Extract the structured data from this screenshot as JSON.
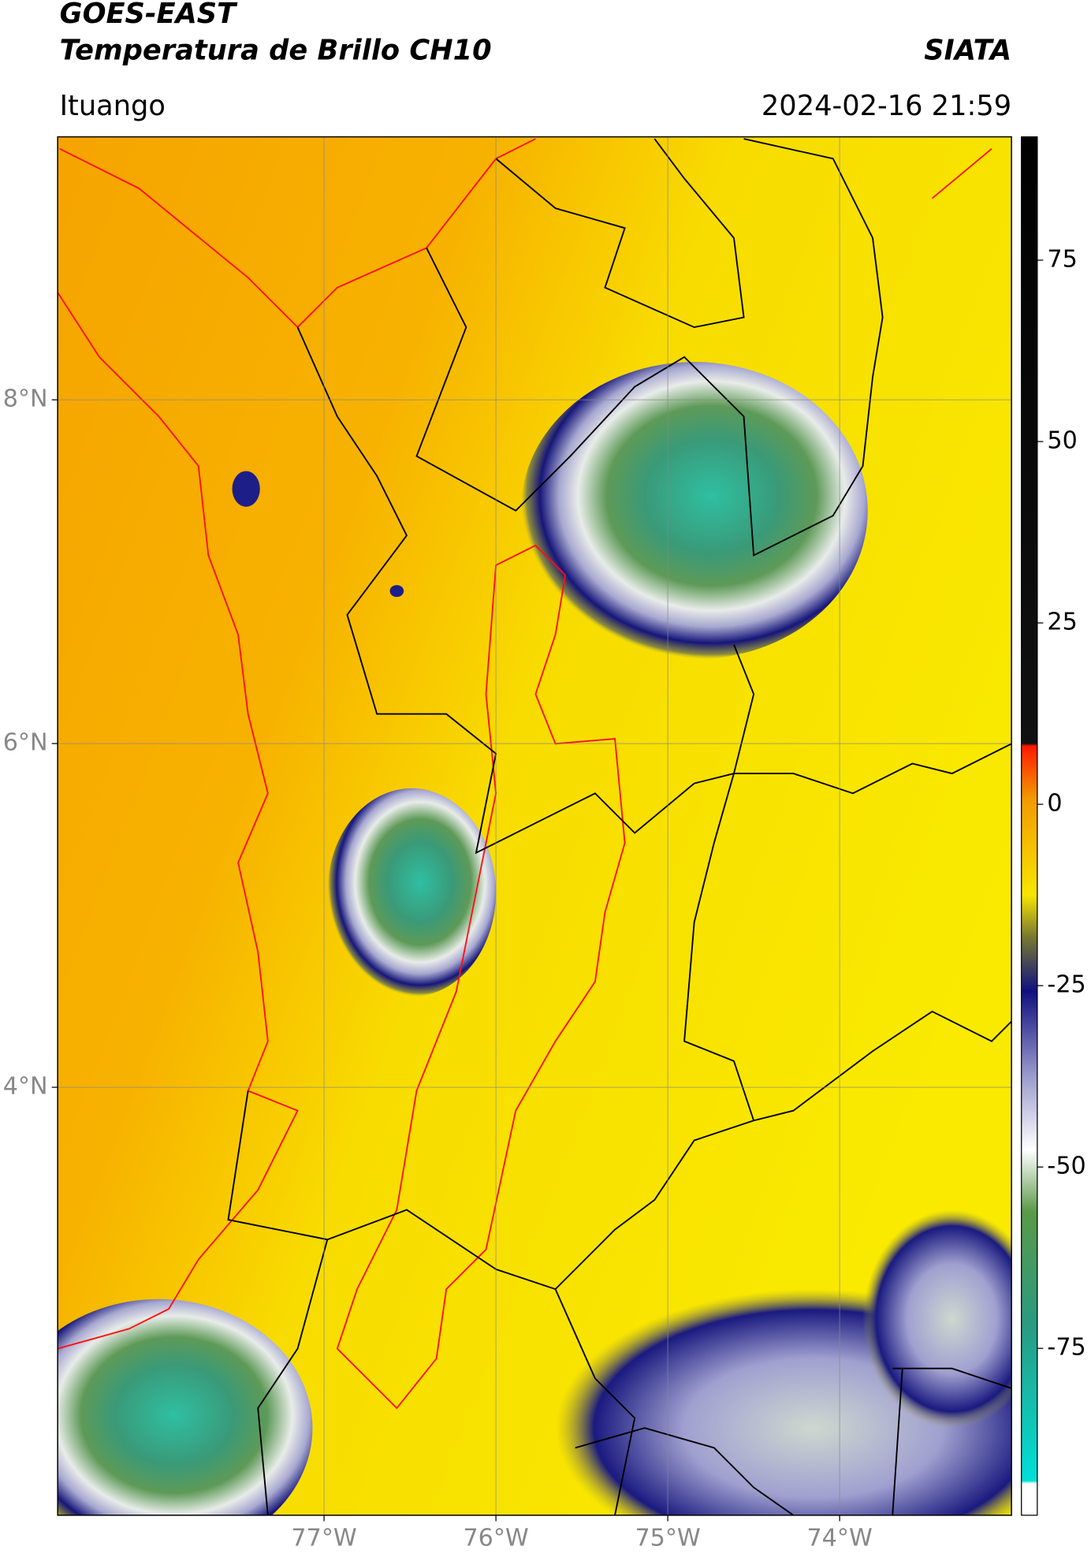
{
  "chart_data": {
    "type": "map",
    "title": "GOES-EAST",
    "subtitle": "Temperatura de Brillo CH10",
    "source": "SIATA",
    "location": "Ituango",
    "datetime": "2024-02-16 21:59",
    "xlim": [
      -78.55,
      -73.0
    ],
    "ylim": [
      1.51,
      9.53
    ],
    "xticks": [
      {
        "value": -77,
        "label": "77°W"
      },
      {
        "value": -76,
        "label": "76°W"
      },
      {
        "value": -75,
        "label": "75°W"
      },
      {
        "value": -74,
        "label": "74°W"
      }
    ],
    "yticks": [
      {
        "value": 8,
        "label": "8°N"
      },
      {
        "value": 6,
        "label": "6°N"
      },
      {
        "value": 4,
        "label": "4°N"
      }
    ],
    "grid": true,
    "colorbar": {
      "lim": [
        -98,
        92
      ],
      "ticks": [
        75,
        50,
        25,
        0,
        -25,
        -50,
        -75
      ]
    }
  }
}
